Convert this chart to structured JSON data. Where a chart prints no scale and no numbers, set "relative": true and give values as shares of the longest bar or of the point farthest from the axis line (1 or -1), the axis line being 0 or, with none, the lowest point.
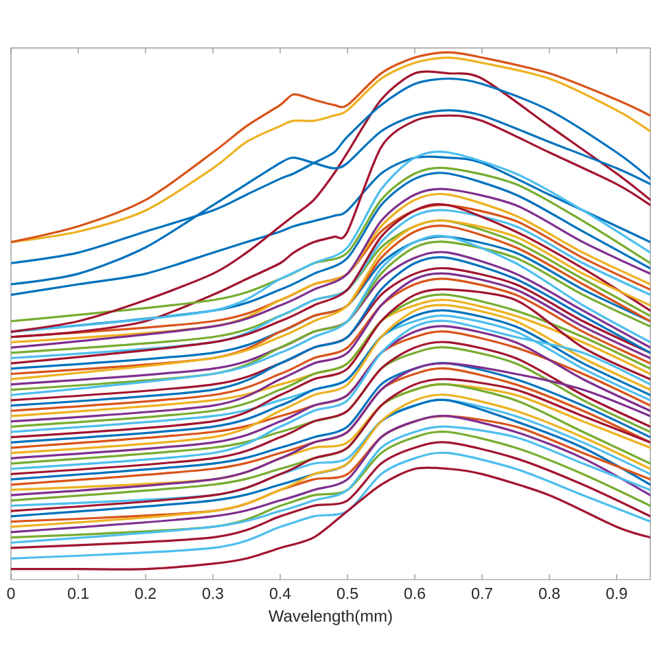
{
  "chart_data": {
    "type": "line",
    "relative": true,
    "xlabel": "Wavelength(mm)",
    "xlim": [
      0,
      0.95
    ],
    "xticks": [
      0,
      0.1,
      0.2,
      0.3,
      0.4,
      0.5,
      0.6,
      0.7,
      0.8,
      0.9
    ],
    "x": [
      0,
      0.3,
      0.4,
      0.45,
      0.5,
      0.55,
      0.6,
      0.65,
      0.75,
      0.85,
      0.95
    ],
    "series": [
      {
        "color": "#0072BD",
        "values": [
          0.47,
          0.51,
          0.55,
          0.58,
          0.61,
          0.71,
          0.76,
          0.77,
          0.73,
          0.66,
          0.59
        ]
      },
      {
        "color": "#D95319",
        "values": [
          0.46,
          0.49,
          0.53,
          0.56,
          0.58,
          0.66,
          0.7,
          0.71,
          0.68,
          0.61,
          0.55
        ]
      },
      {
        "color": "#EDB120",
        "values": [
          0.45,
          0.48,
          0.53,
          0.56,
          0.58,
          0.67,
          0.72,
          0.73,
          0.69,
          0.62,
          0.56
        ]
      },
      {
        "color": "#7E2F8E",
        "values": [
          0.44,
          0.48,
          0.52,
          0.55,
          0.58,
          0.68,
          0.73,
          0.74,
          0.71,
          0.64,
          0.58
        ]
      },
      {
        "color": "#77AC30",
        "values": [
          0.43,
          0.46,
          0.5,
          0.53,
          0.55,
          0.63,
          0.67,
          0.68,
          0.64,
          0.57,
          0.5
        ]
      },
      {
        "color": "#4DBEEE",
        "values": [
          0.42,
          0.45,
          0.5,
          0.53,
          0.55,
          0.64,
          0.69,
          0.7,
          0.67,
          0.6,
          0.54
        ]
      },
      {
        "color": "#A2142F",
        "values": [
          0.41,
          0.45,
          0.49,
          0.52,
          0.55,
          0.65,
          0.7,
          0.71,
          0.66,
          0.59,
          0.51
        ]
      },
      {
        "color": "#0072BD",
        "values": [
          0.4,
          0.43,
          0.47,
          0.5,
          0.52,
          0.6,
          0.64,
          0.65,
          0.62,
          0.55,
          0.49
        ]
      },
      {
        "color": "#D95319",
        "values": [
          0.39,
          0.42,
          0.47,
          0.5,
          0.52,
          0.61,
          0.66,
          0.67,
          0.63,
          0.56,
          0.49
        ]
      },
      {
        "color": "#EDB120",
        "values": [
          0.38,
          0.42,
          0.46,
          0.49,
          0.52,
          0.62,
          0.67,
          0.68,
          0.65,
          0.58,
          0.52
        ]
      },
      {
        "color": "#7E2F8E",
        "values": [
          0.37,
          0.4,
          0.44,
          0.47,
          0.49,
          0.57,
          0.61,
          0.62,
          0.58,
          0.51,
          0.44
        ]
      },
      {
        "color": "#77AC30",
        "values": [
          0.36,
          0.39,
          0.44,
          0.47,
          0.49,
          0.58,
          0.63,
          0.64,
          0.61,
          0.54,
          0.48
        ]
      },
      {
        "color": "#4DBEEE",
        "values": [
          0.35,
          0.39,
          0.43,
          0.46,
          0.49,
          0.59,
          0.64,
          0.65,
          0.6,
          0.52,
          0.45
        ]
      },
      {
        "color": "#A2142F",
        "values": [
          0.34,
          0.37,
          0.41,
          0.44,
          0.46,
          0.54,
          0.58,
          0.59,
          0.56,
          0.49,
          0.43
        ]
      },
      {
        "color": "#0072BD",
        "values": [
          0.33,
          0.36,
          0.41,
          0.44,
          0.46,
          0.55,
          0.6,
          0.61,
          0.57,
          0.5,
          0.43
        ]
      },
      {
        "color": "#D95319",
        "values": [
          0.32,
          0.35,
          0.39,
          0.42,
          0.44,
          0.52,
          0.56,
          0.57,
          0.54,
          0.47,
          0.41
        ]
      },
      {
        "color": "#EDB120",
        "values": [
          0.31,
          0.34,
          0.37,
          0.39,
          0.41,
          0.49,
          0.52,
          0.53,
          0.5,
          0.45,
          0.39
        ]
      },
      {
        "color": "#7E2F8E",
        "values": [
          0.3,
          0.33,
          0.38,
          0.41,
          0.43,
          0.52,
          0.57,
          0.58,
          0.55,
          0.48,
          0.42
        ]
      },
      {
        "color": "#77AC30",
        "values": [
          0.29,
          0.32,
          0.36,
          0.39,
          0.41,
          0.49,
          0.53,
          0.54,
          0.51,
          0.46,
          0.4
        ]
      },
      {
        "color": "#4DBEEE",
        "values": [
          0.28,
          0.31,
          0.34,
          0.36,
          0.38,
          0.46,
          0.49,
          0.5,
          0.47,
          0.4,
          0.34
        ]
      },
      {
        "color": "#A2142F",
        "values": [
          0.27,
          0.3,
          0.35,
          0.38,
          0.4,
          0.49,
          0.54,
          0.55,
          0.53,
          0.44,
          0.38
        ]
      },
      {
        "color": "#0072BD",
        "values": [
          0.26,
          0.29,
          0.33,
          0.36,
          0.38,
          0.46,
          0.5,
          0.51,
          0.48,
          0.41,
          0.35
        ]
      },
      {
        "color": "#D95319",
        "values": [
          0.25,
          0.28,
          0.31,
          0.33,
          0.35,
          0.43,
          0.46,
          0.47,
          0.44,
          0.39,
          0.33
        ]
      },
      {
        "color": "#EDB120",
        "values": [
          0.24,
          0.27,
          0.32,
          0.35,
          0.37,
          0.46,
          0.51,
          0.52,
          0.49,
          0.42,
          0.36
        ]
      },
      {
        "color": "#7E2F8E",
        "values": [
          0.23,
          0.26,
          0.3,
          0.33,
          0.35,
          0.43,
          0.47,
          0.48,
          0.45,
          0.38,
          0.32
        ]
      },
      {
        "color": "#77AC30",
        "values": [
          0.22,
          0.25,
          0.28,
          0.3,
          0.32,
          0.4,
          0.43,
          0.44,
          0.41,
          0.34,
          0.28
        ]
      },
      {
        "color": "#4DBEEE",
        "values": [
          0.21,
          0.24,
          0.29,
          0.32,
          0.34,
          0.43,
          0.48,
          0.49,
          0.46,
          0.43,
          0.37
        ]
      },
      {
        "color": "#A2142F",
        "values": [
          0.2,
          0.23,
          0.27,
          0.3,
          0.32,
          0.4,
          0.44,
          0.45,
          0.42,
          0.35,
          0.29
        ]
      },
      {
        "color": "#0072BD",
        "values": [
          0.19,
          0.22,
          0.25,
          0.27,
          0.29,
          0.37,
          0.4,
          0.41,
          0.38,
          0.33,
          0.27
        ]
      },
      {
        "color": "#D95319",
        "values": [
          0.18,
          0.21,
          0.24,
          0.26,
          0.28,
          0.36,
          0.39,
          0.4,
          0.37,
          0.32,
          0.26
        ]
      },
      {
        "color": "#EDB120",
        "values": [
          0.17,
          0.19,
          0.23,
          0.25,
          0.26,
          0.33,
          0.36,
          0.37,
          0.35,
          0.3,
          0.25
        ]
      },
      {
        "color": "#7E2F8E",
        "values": [
          0.16,
          0.19,
          0.23,
          0.26,
          0.28,
          0.36,
          0.4,
          0.41,
          0.39,
          0.36,
          0.31
        ]
      },
      {
        "color": "#77AC30",
        "values": [
          0.15,
          0.18,
          0.21,
          0.23,
          0.25,
          0.33,
          0.36,
          0.37,
          0.34,
          0.28,
          0.22
        ]
      },
      {
        "color": "#4DBEEE",
        "values": [
          0.14,
          0.16,
          0.2,
          0.22,
          0.23,
          0.3,
          0.33,
          0.34,
          0.31,
          0.26,
          0.2
        ]
      },
      {
        "color": "#A2142F",
        "values": [
          0.13,
          0.16,
          0.2,
          0.23,
          0.25,
          0.33,
          0.37,
          0.38,
          0.36,
          0.31,
          0.26
        ]
      },
      {
        "color": "#0072BD",
        "values": [
          0.12,
          0.15,
          0.18,
          0.2,
          0.22,
          0.3,
          0.33,
          0.34,
          0.3,
          0.25,
          0.18
        ]
      },
      {
        "color": "#D95319",
        "values": [
          0.11,
          0.13,
          0.17,
          0.19,
          0.2,
          0.27,
          0.3,
          0.31,
          0.29,
          0.24,
          0.19
        ]
      },
      {
        "color": "#EDB120",
        "values": [
          0.1,
          0.13,
          0.17,
          0.2,
          0.22,
          0.3,
          0.34,
          0.35,
          0.32,
          0.27,
          0.21
        ]
      },
      {
        "color": "#7E2F8E",
        "values": [
          0.09,
          0.12,
          0.15,
          0.17,
          0.19,
          0.27,
          0.3,
          0.31,
          0.28,
          0.23,
          0.16
        ]
      },
      {
        "color": "#77AC30",
        "values": [
          0.08,
          0.1,
          0.14,
          0.16,
          0.17,
          0.24,
          0.27,
          0.28,
          0.25,
          0.2,
          0.14
        ]
      },
      {
        "color": "#4DBEEE",
        "values": [
          0.07,
          0.1,
          0.13,
          0.15,
          0.17,
          0.25,
          0.28,
          0.29,
          0.27,
          0.22,
          0.17
        ]
      },
      {
        "color": "#A2142F",
        "values": [
          0.06,
          0.08,
          0.12,
          0.14,
          0.15,
          0.22,
          0.25,
          0.26,
          0.23,
          0.18,
          0.12
        ]
      },
      {
        "color": "#4DBEEE",
        "values": [
          0.04,
          0.06,
          0.1,
          0.12,
          0.13,
          0.2,
          0.23,
          0.24,
          0.21,
          0.16,
          0.11
        ]
      },
      {
        "color": "#A2142F",
        "x": [
          0,
          0.1,
          0.2,
          0.3,
          0.35,
          0.4,
          0.45,
          0.5,
          0.55,
          0.6,
          0.65,
          0.7,
          0.8,
          0.9,
          0.95
        ],
        "values": [
          0.02,
          0.02,
          0.02,
          0.03,
          0.04,
          0.06,
          0.08,
          0.13,
          0.18,
          0.21,
          0.21,
          0.2,
          0.16,
          0.1,
          0.08
        ]
      },
      {
        "color": "#0072BD",
        "x": [
          0,
          0.1,
          0.2,
          0.3,
          0.35,
          0.4,
          0.42,
          0.45,
          0.48,
          0.5,
          0.55,
          0.6,
          0.65,
          0.7,
          0.8,
          0.9,
          0.95
        ],
        "values": [
          0.54,
          0.56,
          0.58,
          0.62,
          0.64,
          0.66,
          0.67,
          0.68,
          0.69,
          0.7,
          0.77,
          0.8,
          0.8,
          0.79,
          0.73,
          0.67,
          0.64
        ]
      },
      {
        "color": "#A2142F",
        "x": [
          0,
          0.1,
          0.2,
          0.3,
          0.35,
          0.4,
          0.42,
          0.45,
          0.48,
          0.5,
          0.55,
          0.6,
          0.65,
          0.7,
          0.8,
          0.9,
          0.95
        ],
        "values": [
          0.46,
          0.47,
          0.49,
          0.54,
          0.57,
          0.6,
          0.62,
          0.64,
          0.65,
          0.66,
          0.82,
          0.87,
          0.88,
          0.87,
          0.81,
          0.75,
          0.71
        ]
      },
      {
        "color": "#77AC30",
        "values": [
          0.49,
          0.53,
          0.57,
          0.6,
          0.62,
          0.72,
          0.77,
          0.78,
          0.75,
          0.68,
          0.6
        ]
      },
      {
        "color": "#4DBEEE",
        "values": [
          0.47,
          0.51,
          0.57,
          0.6,
          0.63,
          0.74,
          0.8,
          0.81,
          0.77,
          0.7,
          0.62
        ]
      },
      {
        "color": "#A2142F",
        "x": [
          0,
          0.1,
          0.2,
          0.3,
          0.35,
          0.4,
          0.42,
          0.45,
          0.48,
          0.5,
          0.55,
          0.6,
          0.65,
          0.7,
          0.8,
          0.9,
          0.95
        ],
        "values": [
          0.47,
          0.49,
          0.53,
          0.58,
          0.62,
          0.67,
          0.69,
          0.72,
          0.77,
          0.81,
          0.91,
          0.96,
          0.96,
          0.95,
          0.86,
          0.77,
          0.72
        ]
      },
      {
        "color": "#0072BD",
        "x": [
          0,
          0.1,
          0.2,
          0.3,
          0.35,
          0.4,
          0.42,
          0.45,
          0.48,
          0.5,
          0.55,
          0.6,
          0.65,
          0.7,
          0.8,
          0.9,
          0.95
        ],
        "values": [
          0.56,
          0.58,
          0.63,
          0.71,
          0.75,
          0.79,
          0.8,
          0.79,
          0.78,
          0.79,
          0.85,
          0.88,
          0.89,
          0.88,
          0.83,
          0.78,
          0.75
        ]
      },
      {
        "color": "#0072BD",
        "x": [
          0,
          0.1,
          0.2,
          0.3,
          0.35,
          0.4,
          0.42,
          0.45,
          0.48,
          0.5,
          0.55,
          0.6,
          0.65,
          0.7,
          0.8,
          0.9,
          0.95
        ],
        "values": [
          0.6,
          0.62,
          0.66,
          0.7,
          0.73,
          0.76,
          0.77,
          0.79,
          0.81,
          0.84,
          0.9,
          0.94,
          0.95,
          0.94,
          0.89,
          0.81,
          0.76
        ]
      },
      {
        "color": "#EDB120",
        "x": [
          0,
          0.1,
          0.2,
          0.3,
          0.35,
          0.4,
          0.42,
          0.45,
          0.48,
          0.5,
          0.55,
          0.6,
          0.65,
          0.7,
          0.8,
          0.9,
          0.95
        ],
        "values": [
          0.64,
          0.66,
          0.7,
          0.78,
          0.83,
          0.86,
          0.87,
          0.87,
          0.88,
          0.89,
          0.95,
          0.98,
          0.99,
          0.98,
          0.95,
          0.89,
          0.85
        ]
      },
      {
        "color": "#D95319",
        "x": [
          0,
          0.1,
          0.2,
          0.3,
          0.35,
          0.4,
          0.42,
          0.45,
          0.48,
          0.5,
          0.55,
          0.6,
          0.65,
          0.7,
          0.8,
          0.9,
          0.95
        ],
        "values": [
          0.64,
          0.67,
          0.72,
          0.81,
          0.86,
          0.9,
          0.92,
          0.91,
          0.9,
          0.9,
          0.96,
          0.99,
          1.0,
          0.99,
          0.96,
          0.91,
          0.88
        ]
      }
    ]
  }
}
